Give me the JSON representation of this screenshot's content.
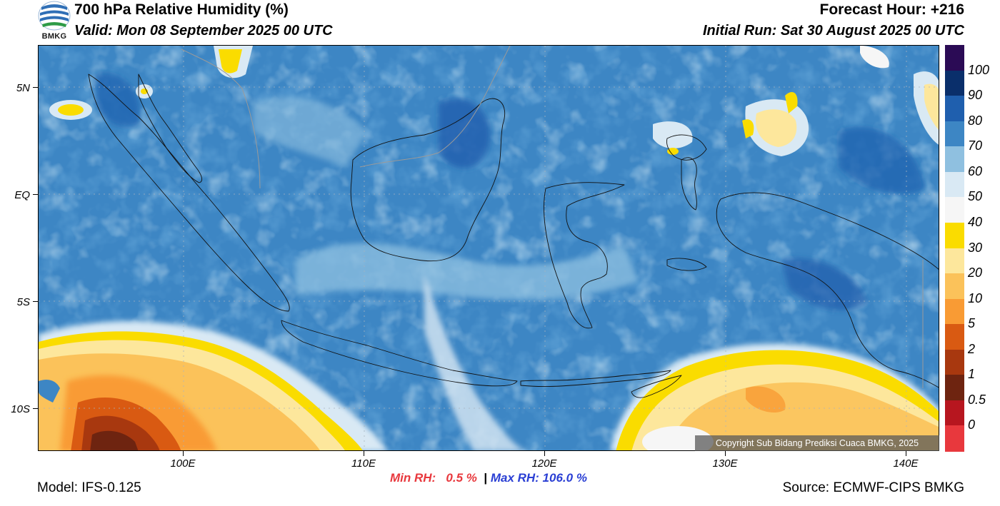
{
  "header": {
    "title": "700 hPa Relative Humidity (%)",
    "valid": "Valid: Mon 08 September 2025 00 UTC",
    "forecast_hour": "Forecast Hour: +216",
    "initial_run": "Initial Run: Sat 30 August 2025 00 UTC",
    "logo_text": "BMKG"
  },
  "map": {
    "lat_labels": [
      "5N",
      "EQ",
      "5S",
      "10S"
    ],
    "lon_labels": [
      "100E",
      "110E",
      "120E",
      "130E",
      "140E"
    ],
    "copyright": "Copyright Sub Bidang Prediksi Cuaca BMKG, 2025"
  },
  "colorbar": {
    "labels": [
      "100",
      "90",
      "80",
      "70",
      "60",
      "50",
      "40",
      "30",
      "20",
      "10",
      "5",
      "2",
      "1",
      "0.5",
      "0"
    ],
    "colors": [
      "#2b0b55",
      "#0a2f6b",
      "#1f5fae",
      "#3d86c4",
      "#8fc0e0",
      "#d9e9f4",
      "#f6f6f6",
      "#fadc00",
      "#fde79c",
      "#fbc25a",
      "#f99b34",
      "#d95a12",
      "#a8380f",
      "#6e2410",
      "#b7161f",
      "#e8383d"
    ]
  },
  "stats": {
    "min_label": "Min RH:",
    "min_value": "0.5 %",
    "max_label": "Max RH: 106.0 %",
    "separator": "|"
  },
  "footer": {
    "model": "Model: IFS-0.125",
    "source": "Source: ECMWF-CIPS BMKG"
  }
}
